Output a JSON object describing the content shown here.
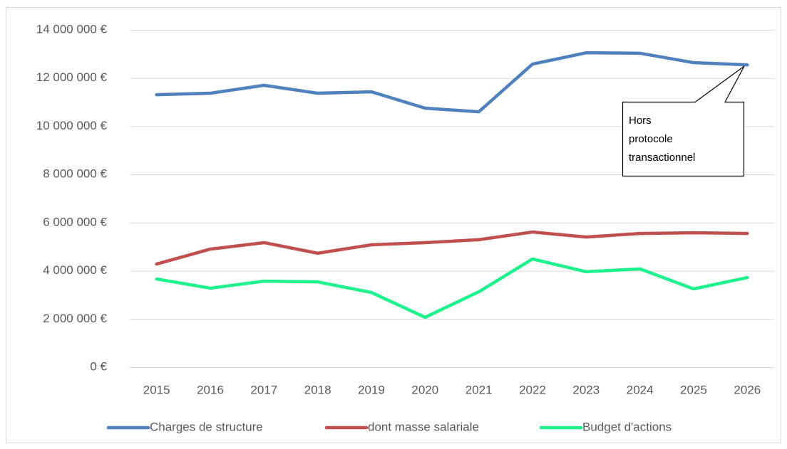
{
  "chart_data": {
    "type": "line",
    "categories": [
      "2015",
      "2016",
      "2017",
      "2018",
      "2019",
      "2020",
      "2021",
      "2022",
      "2023",
      "2024",
      "2025",
      "2026"
    ],
    "series": [
      {
        "name": "Charges de structure",
        "color": "#4f81bd",
        "values": [
          11310000,
          11370000,
          11700000,
          11370000,
          11430000,
          10750000,
          10600000,
          12580000,
          13050000,
          13030000,
          12640000,
          12550000
        ]
      },
      {
        "name": "dont masse salariale",
        "color": "#c0504d",
        "values": [
          4280000,
          4900000,
          5170000,
          4730000,
          5080000,
          5170000,
          5290000,
          5610000,
          5400000,
          5550000,
          5580000,
          5550000
        ]
      },
      {
        "name": "Budget d'actions",
        "color": "#1ef28c",
        "values": [
          3660000,
          3280000,
          3570000,
          3540000,
          3100000,
          2070000,
          3130000,
          4490000,
          3960000,
          4080000,
          3250000,
          3720000
        ]
      }
    ],
    "ylim": [
      0,
      14000000
    ],
    "yticks": [
      {
        "value": 0,
        "label": "0 €"
      },
      {
        "value": 2000000,
        "label": "2 000 000 €"
      },
      {
        "value": 4000000,
        "label": "4 000 000 €"
      },
      {
        "value": 6000000,
        "label": "6 000 000 €"
      },
      {
        "value": 8000000,
        "label": "8 000 000 €"
      },
      {
        "value": 10000000,
        "label": "10 000 000 €"
      },
      {
        "value": 12000000,
        "label": "12 000 000 €"
      },
      {
        "value": 14000000,
        "label": "14 000 000 €"
      }
    ],
    "grid": true,
    "legend": "bottom",
    "annotation": [
      "Hors",
      "protocole",
      "transactionnel"
    ]
  }
}
